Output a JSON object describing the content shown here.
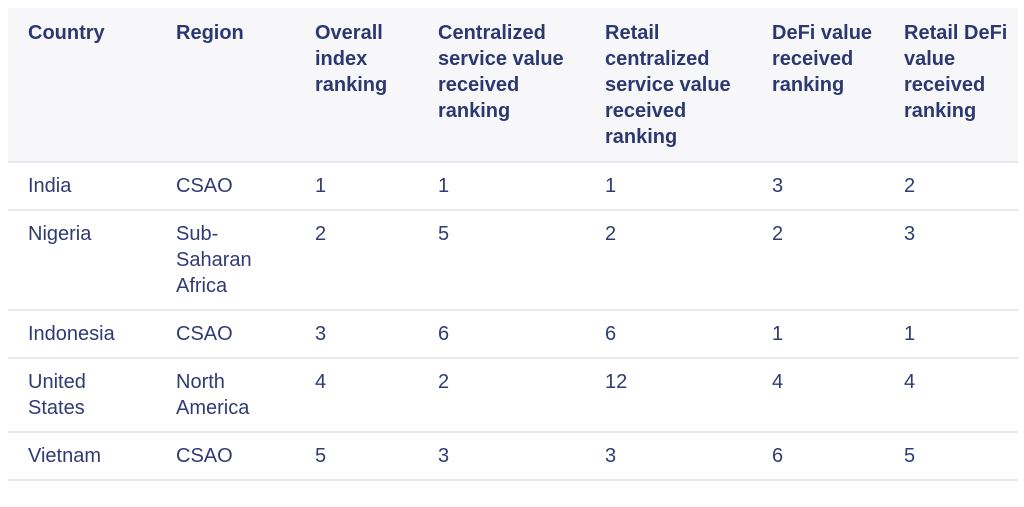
{
  "table": {
    "headers": [
      "Country",
      "Region",
      "Overall index ranking",
      "Centralized service value received ranking",
      "Retail centralized service value received ranking",
      "DeFi value received ranking",
      "Retail DeFi value received ranking"
    ],
    "rows": [
      [
        "India",
        "CSAO",
        "1",
        "1",
        "1",
        "3",
        "2"
      ],
      [
        "Nigeria",
        "Sub-Saharan Africa",
        "2",
        "5",
        "2",
        "2",
        "3"
      ],
      [
        "Indonesia",
        "CSAO",
        "3",
        "6",
        "6",
        "1",
        "1"
      ],
      [
        "United States",
        "North America",
        "4",
        "2",
        "12",
        "4",
        "4"
      ],
      [
        "Vietnam",
        "CSAO",
        "5",
        "3",
        "3",
        "6",
        "5"
      ]
    ]
  }
}
